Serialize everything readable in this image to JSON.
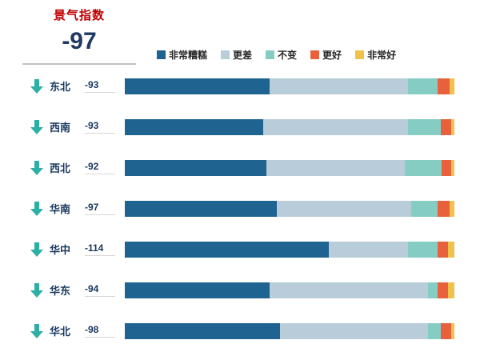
{
  "header": {
    "title": "景气指数",
    "value": "-97"
  },
  "colors": {
    "arrow": "#2CAFA4",
    "title_red": "#C00000",
    "headline_navy": "#1F3864"
  },
  "legend": [
    {
      "label": "非常糟糕",
      "color": "#1F6391"
    },
    {
      "label": "更差",
      "color": "#B9CCD9"
    },
    {
      "label": "不变",
      "color": "#85CDC3"
    },
    {
      "label": "更好",
      "color": "#E8613C"
    },
    {
      "label": "非常好",
      "color": "#F0C24B"
    }
  ],
  "chart_data": {
    "type": "bar",
    "orientation": "horizontal",
    "stacked": true,
    "title": "景气指数",
    "headline_value": -97,
    "categories": [
      "东北",
      "西南",
      "西北",
      "华南",
      "华中",
      "华东",
      "华北"
    ],
    "values": [
      -93,
      -93,
      -92,
      -97,
      -114,
      -94,
      -98
    ],
    "unit": "percent_share_of_bar",
    "series": [
      {
        "name": "非常糟糕",
        "color": "#1F6391",
        "values": [
          44,
          42,
          43,
          46,
          62,
          44,
          47
        ]
      },
      {
        "name": "更差",
        "color": "#B9CCD9",
        "values": [
          42,
          44,
          42,
          41,
          24,
          48,
          45
        ]
      },
      {
        "name": "不变",
        "color": "#85CDC3",
        "values": [
          9,
          10,
          11,
          8,
          9,
          3,
          4
        ]
      },
      {
        "name": "更好",
        "color": "#E8613C",
        "values": [
          3.5,
          3,
          3,
          3.5,
          3,
          3,
          3
        ]
      },
      {
        "name": "非常好",
        "color": "#F0C24B",
        "values": [
          1.5,
          1,
          1,
          1.5,
          2,
          2,
          1
        ]
      }
    ],
    "legend_position": "top",
    "grid": false,
    "xlabel": "",
    "ylabel": ""
  }
}
